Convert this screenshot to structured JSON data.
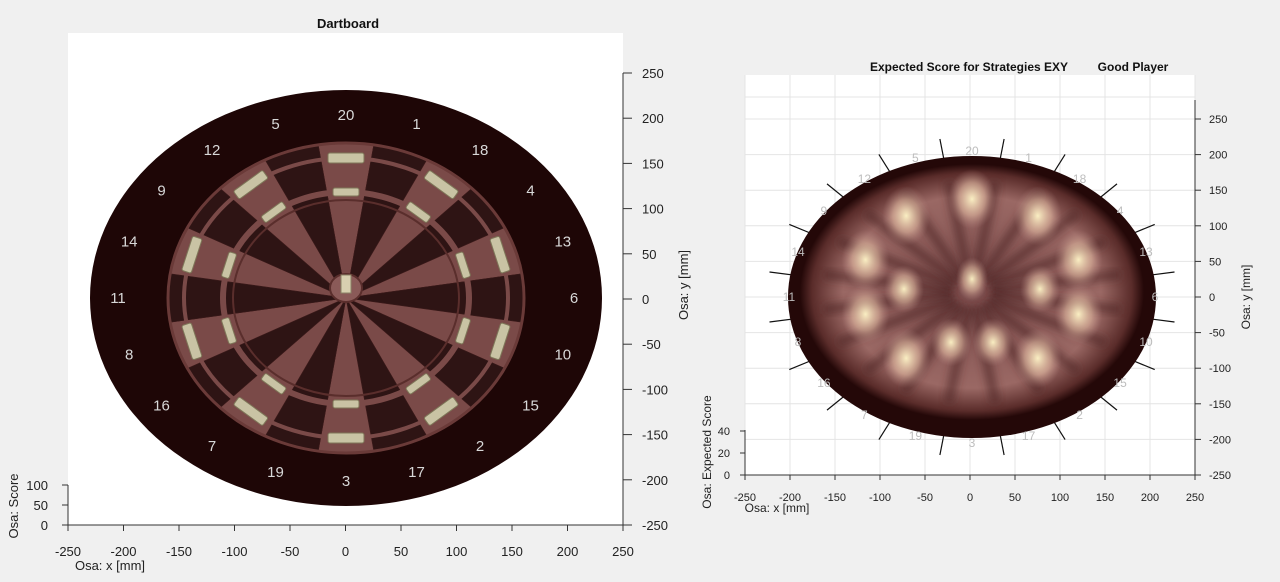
{
  "chart_data": [
    {
      "type": "other",
      "title": "Dartboard",
      "xlabel": "Osa: x [mm]",
      "ylabel": "Osa: y [mm]",
      "zlabel": "Osa: Score",
      "xlim": [
        -250,
        250
      ],
      "ylim": [
        -250,
        250
      ],
      "zlim": [
        0,
        100
      ],
      "xticks": [
        -250,
        -200,
        -150,
        -100,
        -50,
        0,
        50,
        100,
        150,
        200,
        250
      ],
      "yticks": [
        250,
        200,
        150,
        100,
        50,
        0,
        -50,
        -100,
        -150,
        -200,
        -250
      ],
      "zticks": [
        100,
        50,
        0
      ],
      "sector_numbers": [
        "20",
        "1",
        "18",
        "4",
        "13",
        "6",
        "10",
        "15",
        "2",
        "17",
        "3",
        "19",
        "7",
        "16",
        "8",
        "11",
        "14",
        "9",
        "12",
        "5"
      ],
      "colors": {
        "board_edge": "#1e0606",
        "sector_light": "#7a4a48",
        "sector_dark": "#2e1414",
        "rings": "#c9c3a4"
      }
    },
    {
      "type": "surface",
      "title": "Expected Score for Strategies EXY",
      "subtitle": "Good Player",
      "xlabel": "Osa: x [mm]",
      "ylabel": "Osa: y [mm]",
      "zlabel": "Osa: Expected Score",
      "xlim": [
        -250,
        250
      ],
      "ylim": [
        -250,
        250
      ],
      "zlim": [
        0,
        40
      ],
      "xticks": [
        -250,
        -200,
        -150,
        -100,
        -50,
        0,
        50,
        100,
        150,
        200,
        250
      ],
      "yticks": [
        250,
        200,
        150,
        100,
        50,
        0,
        -50,
        -100,
        -150,
        -200,
        -250
      ],
      "zticks": [
        40,
        20,
        0
      ],
      "sector_numbers": [
        "20",
        "1",
        "18",
        "4",
        "13",
        "6",
        "10",
        "15",
        "2",
        "17",
        "3",
        "19",
        "7",
        "16",
        "8",
        "11",
        "14",
        "9",
        "12",
        "5"
      ],
      "colors": {
        "low": "#2a0a08",
        "mid": "#a06a68",
        "high": "#f8f0c0"
      }
    }
  ]
}
